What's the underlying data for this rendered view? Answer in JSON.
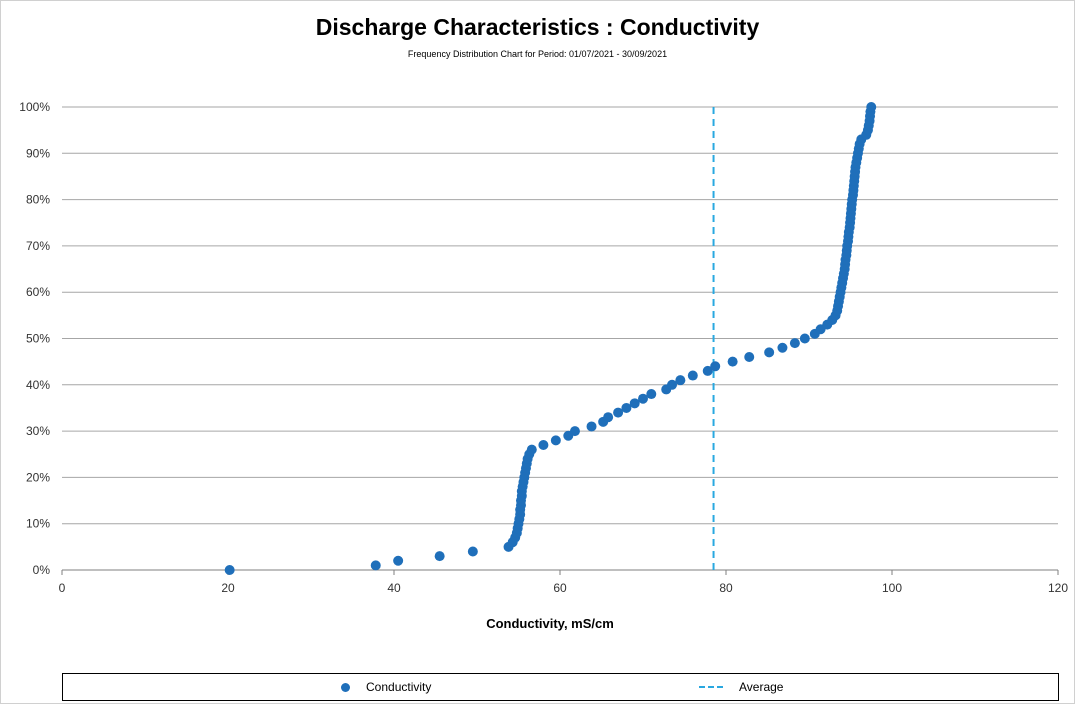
{
  "title": "Discharge Characteristics : Conductivity",
  "subtitle": "Frequency  Distribution Chart for Period: 01/07/2021 - 30/09/2021",
  "legend": {
    "series_label": "Conductivity",
    "average_label": "Average"
  },
  "colors": {
    "series": "#1f6fba",
    "average": "#29a8e0",
    "grid": "#a6a6a6"
  },
  "chart_data": {
    "type": "scatter",
    "title": "Discharge Characteristics : Conductivity",
    "subtitle": "Frequency  Distribution Chart for Period: 01/07/2021 - 30/09/2021",
    "xlabel": "Conductivity, mS/cm",
    "ylabel": "",
    "xlim": [
      0,
      120
    ],
    "ylim": [
      0,
      1
    ],
    "x_ticks": [
      0,
      20,
      40,
      60,
      80,
      100,
      120
    ],
    "y_ticks": [
      0,
      0.1,
      0.2,
      0.3,
      0.4,
      0.5,
      0.6,
      0.7,
      0.8,
      0.9,
      1.0
    ],
    "y_tick_labels": [
      "0%",
      "10%",
      "20%",
      "30%",
      "40%",
      "50%",
      "60%",
      "70%",
      "80%",
      "90%",
      "100%"
    ],
    "grid": "horizontal",
    "legend_position": "bottom",
    "series": [
      {
        "name": "Conductivity",
        "points": [
          [
            20.2,
            0.0
          ],
          [
            37.8,
            0.01
          ],
          [
            40.5,
            0.02
          ],
          [
            45.5,
            0.03
          ],
          [
            49.5,
            0.04
          ],
          [
            53.8,
            0.05
          ],
          [
            54.3,
            0.06
          ],
          [
            54.6,
            0.07
          ],
          [
            54.8,
            0.08
          ],
          [
            54.9,
            0.09
          ],
          [
            55.0,
            0.1
          ],
          [
            55.1,
            0.11
          ],
          [
            55.2,
            0.12
          ],
          [
            55.2,
            0.13
          ],
          [
            55.3,
            0.14
          ],
          [
            55.3,
            0.15
          ],
          [
            55.4,
            0.16
          ],
          [
            55.4,
            0.17
          ],
          [
            55.5,
            0.18
          ],
          [
            55.6,
            0.19
          ],
          [
            55.7,
            0.2
          ],
          [
            55.8,
            0.21
          ],
          [
            55.9,
            0.22
          ],
          [
            56.0,
            0.23
          ],
          [
            56.1,
            0.24
          ],
          [
            56.3,
            0.25
          ],
          [
            56.6,
            0.26
          ],
          [
            58.0,
            0.27
          ],
          [
            59.5,
            0.28
          ],
          [
            61.0,
            0.29
          ],
          [
            61.8,
            0.3
          ],
          [
            63.8,
            0.31
          ],
          [
            65.2,
            0.32
          ],
          [
            65.8,
            0.33
          ],
          [
            67.0,
            0.34
          ],
          [
            68.0,
            0.35
          ],
          [
            69.0,
            0.36
          ],
          [
            70.0,
            0.37
          ],
          [
            71.0,
            0.38
          ],
          [
            72.8,
            0.39
          ],
          [
            73.5,
            0.4
          ],
          [
            74.5,
            0.41
          ],
          [
            76.0,
            0.42
          ],
          [
            77.8,
            0.43
          ],
          [
            78.7,
            0.44
          ],
          [
            80.8,
            0.45
          ],
          [
            82.8,
            0.46
          ],
          [
            85.2,
            0.47
          ],
          [
            86.8,
            0.48
          ],
          [
            88.3,
            0.49
          ],
          [
            89.5,
            0.5
          ],
          [
            90.7,
            0.51
          ],
          [
            91.4,
            0.52
          ],
          [
            92.2,
            0.53
          ],
          [
            92.8,
            0.54
          ],
          [
            93.2,
            0.55
          ],
          [
            93.4,
            0.56
          ],
          [
            93.5,
            0.57
          ],
          [
            93.6,
            0.58
          ],
          [
            93.7,
            0.59
          ],
          [
            93.8,
            0.6
          ],
          [
            93.9,
            0.61
          ],
          [
            94.0,
            0.62
          ],
          [
            94.1,
            0.63
          ],
          [
            94.2,
            0.64
          ],
          [
            94.3,
            0.65
          ],
          [
            94.35,
            0.66
          ],
          [
            94.4,
            0.67
          ],
          [
            94.5,
            0.68
          ],
          [
            94.55,
            0.69
          ],
          [
            94.6,
            0.7
          ],
          [
            94.7,
            0.71
          ],
          [
            94.75,
            0.72
          ],
          [
            94.8,
            0.73
          ],
          [
            94.9,
            0.74
          ],
          [
            94.95,
            0.75
          ],
          [
            95.0,
            0.76
          ],
          [
            95.05,
            0.77
          ],
          [
            95.1,
            0.78
          ],
          [
            95.15,
            0.79
          ],
          [
            95.2,
            0.8
          ],
          [
            95.3,
            0.81
          ],
          [
            95.35,
            0.82
          ],
          [
            95.4,
            0.83
          ],
          [
            95.45,
            0.84
          ],
          [
            95.5,
            0.85
          ],
          [
            95.55,
            0.86
          ],
          [
            95.6,
            0.87
          ],
          [
            95.7,
            0.88
          ],
          [
            95.8,
            0.89
          ],
          [
            95.9,
            0.9
          ],
          [
            96.0,
            0.91
          ],
          [
            96.1,
            0.92
          ],
          [
            96.3,
            0.93
          ],
          [
            96.9,
            0.94
          ],
          [
            97.1,
            0.95
          ],
          [
            97.2,
            0.96
          ],
          [
            97.3,
            0.97
          ],
          [
            97.35,
            0.98
          ],
          [
            97.4,
            0.99
          ],
          [
            97.5,
            1.0
          ]
        ]
      }
    ],
    "average": {
      "name": "Average",
      "x": 78.5
    }
  }
}
